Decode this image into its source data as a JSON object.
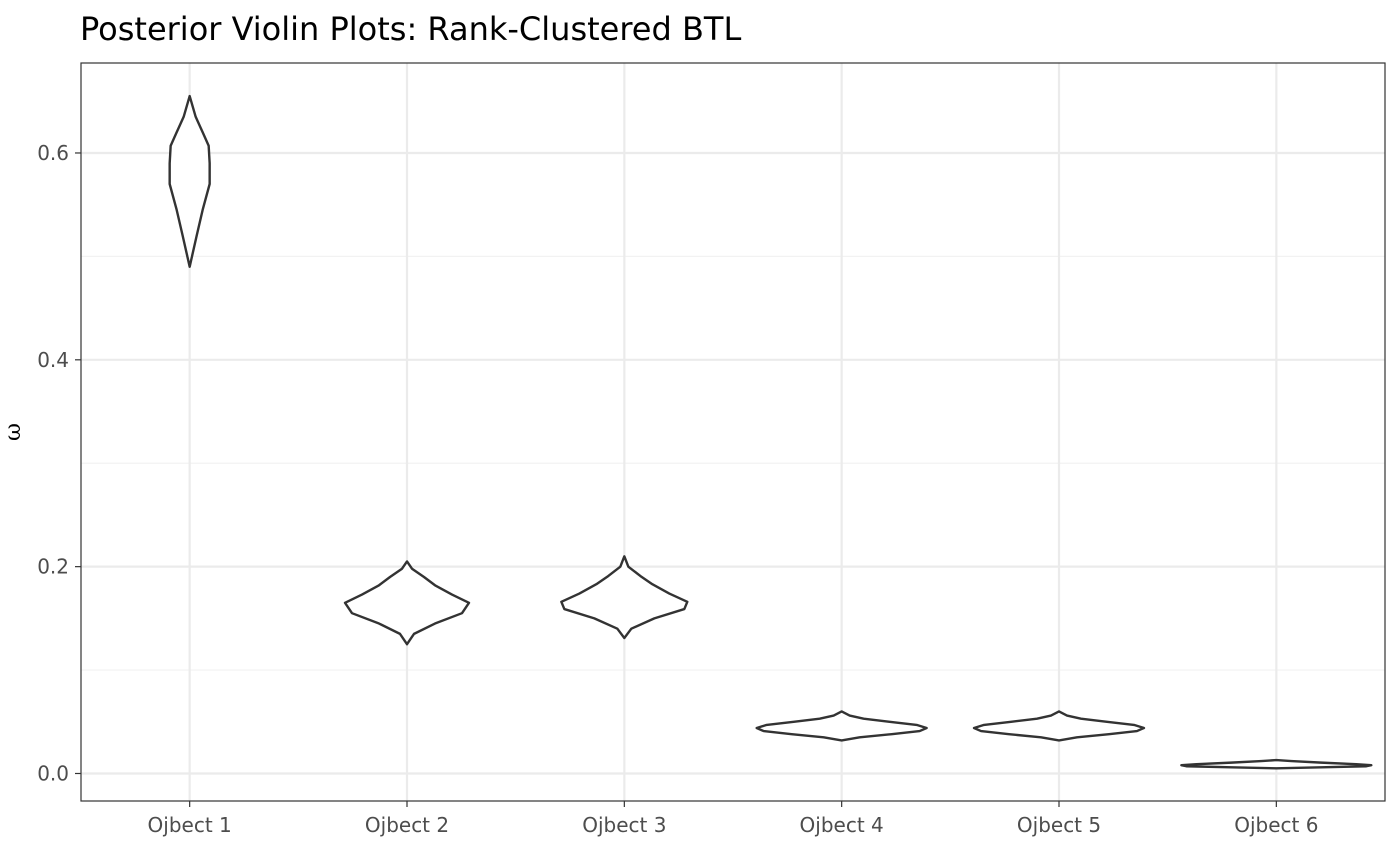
{
  "chart_data": {
    "type": "violin",
    "title": "Posterior Violin Plots: Rank-Clustered BTL",
    "xlabel": "",
    "ylabel": "ω",
    "categories": [
      "Ojbect 1",
      "Ojbect 2",
      "Ojbect 3",
      "Ojbect 4",
      "Ojbect 5",
      "Ojbect 6"
    ],
    "ylim": [
      -0.0266,
      0.687
    ],
    "yticks": [
      0.0,
      0.2,
      0.4,
      0.6
    ],
    "ytick_labels": [
      "0.0",
      "0.2",
      "0.4",
      "0.6"
    ],
    "yminor": [
      0.1,
      0.3,
      0.5
    ],
    "grid": true,
    "legend": "none",
    "violins": [
      {
        "category": "Ojbect 1",
        "min": 0.49,
        "max": 0.655,
        "profile": [
          [
            0.49,
            0.0
          ],
          [
            0.52,
            0.07
          ],
          [
            0.545,
            0.13
          ],
          [
            0.57,
            0.2
          ],
          [
            0.59,
            0.2
          ],
          [
            0.607,
            0.19
          ],
          [
            0.62,
            0.13
          ],
          [
            0.635,
            0.06
          ],
          [
            0.655,
            0.0
          ]
        ]
      },
      {
        "category": "Ojbect 2",
        "min": 0.125,
        "max": 0.205,
        "profile": [
          [
            0.125,
            0.0
          ],
          [
            0.135,
            0.07
          ],
          [
            0.145,
            0.28
          ],
          [
            0.155,
            0.55
          ],
          [
            0.165,
            0.62
          ],
          [
            0.173,
            0.45
          ],
          [
            0.182,
            0.28
          ],
          [
            0.19,
            0.17
          ],
          [
            0.198,
            0.05
          ],
          [
            0.205,
            0.0
          ]
        ]
      },
      {
        "category": "Ojbect 3",
        "min": 0.131,
        "max": 0.21,
        "profile": [
          [
            0.131,
            0.0
          ],
          [
            0.14,
            0.07
          ],
          [
            0.15,
            0.3
          ],
          [
            0.159,
            0.6
          ],
          [
            0.166,
            0.63
          ],
          [
            0.174,
            0.45
          ],
          [
            0.183,
            0.28
          ],
          [
            0.191,
            0.16
          ],
          [
            0.2,
            0.04
          ],
          [
            0.21,
            0.0
          ]
        ]
      },
      {
        "category": "Ojbect 4",
        "min": 0.032,
        "max": 0.06,
        "profile": [
          [
            0.032,
            0.0
          ],
          [
            0.035,
            0.18
          ],
          [
            0.038,
            0.5
          ],
          [
            0.041,
            0.78
          ],
          [
            0.044,
            0.85
          ],
          [
            0.047,
            0.75
          ],
          [
            0.05,
            0.48
          ],
          [
            0.053,
            0.22
          ],
          [
            0.056,
            0.08
          ],
          [
            0.06,
            0.0
          ]
        ]
      },
      {
        "category": "Ojbect 5",
        "min": 0.032,
        "max": 0.06,
        "profile": [
          [
            0.032,
            0.0
          ],
          [
            0.035,
            0.18
          ],
          [
            0.038,
            0.5
          ],
          [
            0.041,
            0.78
          ],
          [
            0.044,
            0.85
          ],
          [
            0.047,
            0.75
          ],
          [
            0.05,
            0.48
          ],
          [
            0.053,
            0.22
          ],
          [
            0.056,
            0.08
          ],
          [
            0.06,
            0.0
          ]
        ]
      },
      {
        "category": "Ojbect 6",
        "min": 0.005,
        "max": 0.013,
        "profile": [
          [
            0.005,
            0.0
          ],
          [
            0.006,
            0.45
          ],
          [
            0.007,
            0.9
          ],
          [
            0.008,
            0.95
          ],
          [
            0.009,
            0.8
          ],
          [
            0.0105,
            0.45
          ],
          [
            0.012,
            0.15
          ],
          [
            0.013,
            0.0
          ]
        ]
      }
    ]
  }
}
